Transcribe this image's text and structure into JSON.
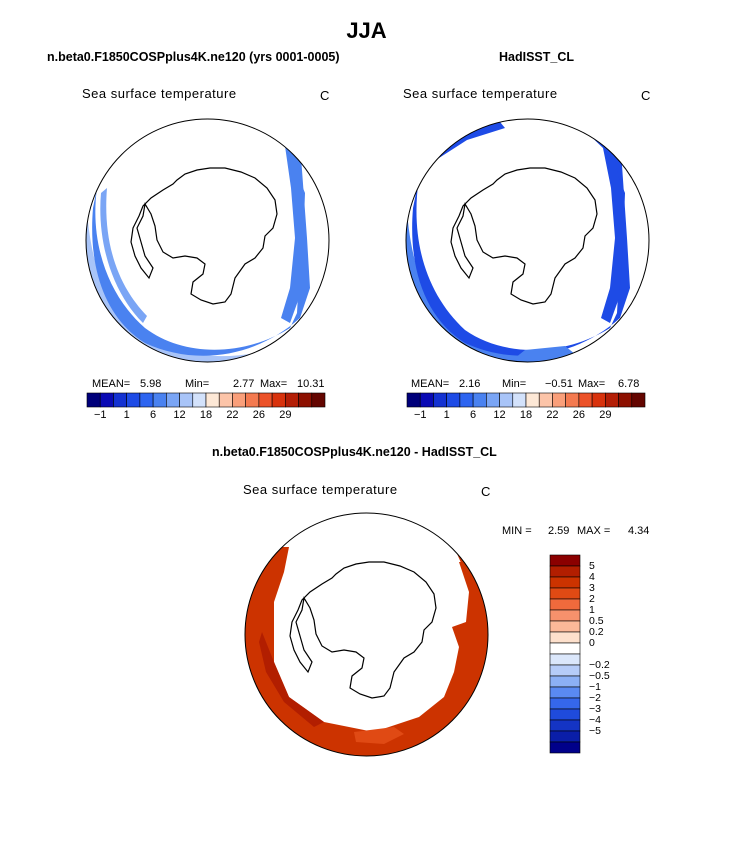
{
  "title": "JJA",
  "panels": [
    {
      "id": "model",
      "title": "n.beta0.F1850COSPplus4K.ne120 (yrs 0001-0005)",
      "variable": "Sea surface temperature",
      "units": "C",
      "stats": {
        "mean_label": "MEAN=",
        "mean": "5.98",
        "min_label": "Min=",
        "min": "2.77",
        "max_label": "Max=",
        "max": "10.31"
      }
    },
    {
      "id": "obs",
      "title": "HadISST_CL",
      "variable": "Sea surface temperature",
      "units": "C",
      "stats": {
        "mean_label": "MEAN=",
        "mean": "2.16",
        "min_label": "Min=",
        "min": "−0.51",
        "max_label": "Max=",
        "max": "6.78"
      }
    },
    {
      "id": "diff",
      "title": "n.beta0.F1850COSPplus4K.ne120 - HadISST_CL",
      "variable": "Sea surface temperature",
      "units": "C",
      "stats": {
        "min_label": "MIN =",
        "min": "2.59",
        "max_label": "MAX =",
        "max": "4.34"
      }
    }
  ],
  "colorbar_top": {
    "colors": [
      "#00007a",
      "#0a0ab4",
      "#1432d2",
      "#1e4be6",
      "#2d64f0",
      "#4a82f0",
      "#7aa5f5",
      "#a8c4f8",
      "#d3e2fb",
      "#fde8d6",
      "#fcc4a8",
      "#fa9f7a",
      "#f47a50",
      "#ec5228",
      "#d8320c",
      "#b41e05",
      "#8c0f00",
      "#640500"
    ],
    "tick_labels": [
      "−1",
      "1",
      "6",
      "12",
      "18",
      "22",
      "26",
      "29"
    ]
  },
  "colorbar_diff": {
    "colors": [
      "#8b0000",
      "#b21e00",
      "#cc3300",
      "#e04a14",
      "#f06a3c",
      "#f7916c",
      "#fbb898",
      "#fde0cc",
      "#ffffff",
      "#dbe7fb",
      "#b6ccf8",
      "#8cb0f5",
      "#5a8af2",
      "#3567eb",
      "#1f4bdc",
      "#1434c4",
      "#0a1ea8",
      "#00008a"
    ],
    "tick_labels": [
      "5",
      "4",
      "3",
      "2",
      "1",
      "0.5",
      "0.2",
      "0",
      "−0.2",
      "−0.5",
      "−1",
      "−2",
      "−3",
      "−4",
      "−5"
    ]
  },
  "chart_data": [
    {
      "type": "heatmap",
      "projection": "south-polar-stereographic",
      "title": "n.beta0.F1850COSPplus4K.ne120 (yrs 0001-0005)",
      "variable": "Sea surface temperature",
      "units": "C",
      "mean": 5.98,
      "min": 2.77,
      "max": 10.31,
      "levels": [
        -1,
        1,
        6,
        12,
        18,
        22,
        26,
        29
      ]
    },
    {
      "type": "heatmap",
      "projection": "south-polar-stereographic",
      "title": "HadISST_CL",
      "variable": "Sea surface temperature",
      "units": "C",
      "mean": 2.16,
      "min": -0.51,
      "max": 6.78,
      "levels": [
        -1,
        1,
        6,
        12,
        18,
        22,
        26,
        29
      ]
    },
    {
      "type": "heatmap",
      "projection": "south-polar-stereographic",
      "title": "n.beta0.F1850COSPplus4K.ne120 - HadISST_CL",
      "variable": "Sea surface temperature",
      "units": "C",
      "min": 2.59,
      "max": 4.34,
      "levels": [
        5,
        4,
        3,
        2,
        1,
        0.5,
        0.2,
        0,
        -0.2,
        -0.5,
        -1,
        -2,
        -3,
        -4,
        -5
      ]
    }
  ]
}
